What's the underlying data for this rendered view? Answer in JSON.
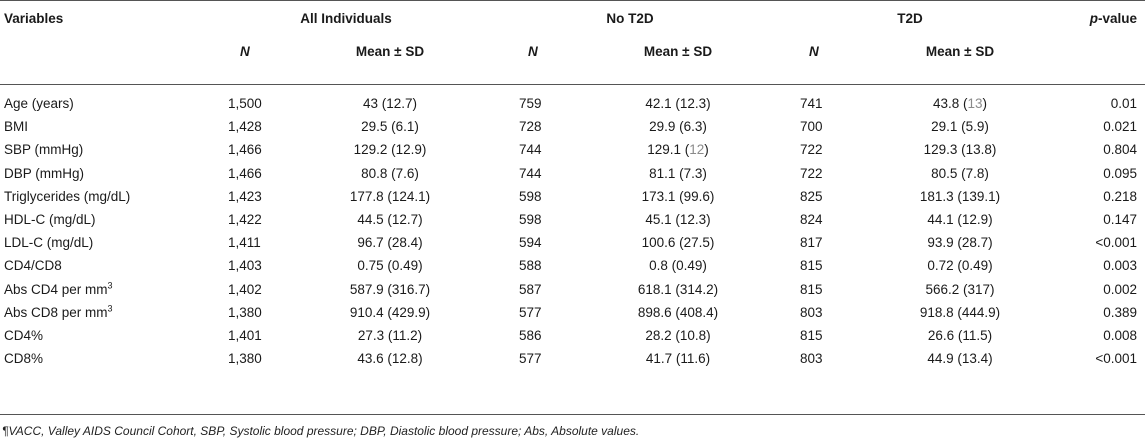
{
  "headers": {
    "variables": "Variables",
    "group_all": "All Individuals",
    "group_no_t2d": "No T2D",
    "group_t2d": "T2D",
    "p_value_p": "p",
    "p_value_rest": "-value",
    "n": "N",
    "mean_sd": "Mean ± SD"
  },
  "rows": [
    {
      "label": "Age (years)",
      "n_all": "1,500",
      "m_all": "43 (12.7)",
      "n_no": "759",
      "m_no": "42.1 (12.3)",
      "n_t2d": "741",
      "m_t2d_a": "43.8 (",
      "m_t2d_b": "13",
      "m_t2d_c": ")",
      "p": "0.01"
    },
    {
      "label": "BMI",
      "n_all": "1,428",
      "m_all": "29.5 (6.1)",
      "n_no": "728",
      "m_no": "29.9 (6.3)",
      "n_t2d": "700",
      "m_t2d": "29.1 (5.9)",
      "p": "0.021"
    },
    {
      "label": "SBP (mmHg)",
      "n_all": "1,466",
      "m_all": "129.2 (12.9)",
      "n_no": "744",
      "m_no_a": "129.1 (",
      "m_no_b": "12",
      "m_no_c": ")",
      "n_t2d": "722",
      "m_t2d": "129.3 (13.8)",
      "p": "0.804"
    },
    {
      "label": "DBP (mmHg)",
      "n_all": "1,466",
      "m_all": "80.8 (7.6)",
      "n_no": "744",
      "m_no": "81.1 (7.3)",
      "n_t2d": "722",
      "m_t2d": "80.5 (7.8)",
      "p": "0.095"
    },
    {
      "label": "Triglycerides (mg/dL)",
      "n_all": "1,423",
      "m_all": "177.8 (124.1)",
      "n_no": "598",
      "m_no": "173.1 (99.6)",
      "n_t2d": "825",
      "m_t2d": "181.3 (139.1)",
      "p": "0.218"
    },
    {
      "label": "HDL-C (mg/dL)",
      "n_all": "1,422",
      "m_all": "44.5 (12.7)",
      "n_no": "598",
      "m_no": "45.1 (12.3)",
      "n_t2d": "824",
      "m_t2d": "44.1 (12.9)",
      "p": "0.147"
    },
    {
      "label": "LDL-C (mg/dL)",
      "n_all": "1,411",
      "m_all": "96.7 (28.4)",
      "n_no": "594",
      "m_no": "100.6 (27.5)",
      "n_t2d": "817",
      "m_t2d": "93.9 (28.7)",
      "p": "<0.001"
    },
    {
      "label": "CD4/CD8",
      "n_all": "1,403",
      "m_all": "0.75 (0.49)",
      "n_no": "588",
      "m_no": "0.8 (0.49)",
      "n_t2d": "815",
      "m_t2d": "0.72 (0.49)",
      "p": "0.003"
    },
    {
      "label": "Abs CD4 per mm",
      "sup": "3",
      "n_all": "1,402",
      "m_all": "587.9 (316.7)",
      "n_no": "587",
      "m_no": "618.1 (314.2)",
      "n_t2d": "815",
      "m_t2d": "566.2 (317)",
      "p": "0.002"
    },
    {
      "label": "Abs CD8 per mm",
      "sup": "3",
      "n_all": "1,380",
      "m_all": "910.4 (429.9)",
      "n_no": "577",
      "m_no": "898.6 (408.4)",
      "n_t2d": "803",
      "m_t2d": "918.8 (444.9)",
      "p": "0.389"
    },
    {
      "label": "CD4%",
      "n_all": "1,401",
      "m_all": "27.3 (11.2)",
      "n_no": "586",
      "m_no": "28.2 (10.8)",
      "n_t2d": "815",
      "m_t2d": "26.6 (11.5)",
      "p": "0.008"
    },
    {
      "label": "CD8%",
      "n_all": "1,380",
      "m_all": "43.6 (12.8)",
      "n_no": "577",
      "m_no": "41.7 (11.6)",
      "n_t2d": "803",
      "m_t2d": "44.9 (13.4)",
      "p": "<0.001"
    }
  ],
  "footnote": {
    "mark": "¶",
    "text": "VACC, Valley AIDS Council Cohort, SBP, Systolic blood pressure; DBP, Diastolic blood pressure; Abs, Absolute values."
  }
}
